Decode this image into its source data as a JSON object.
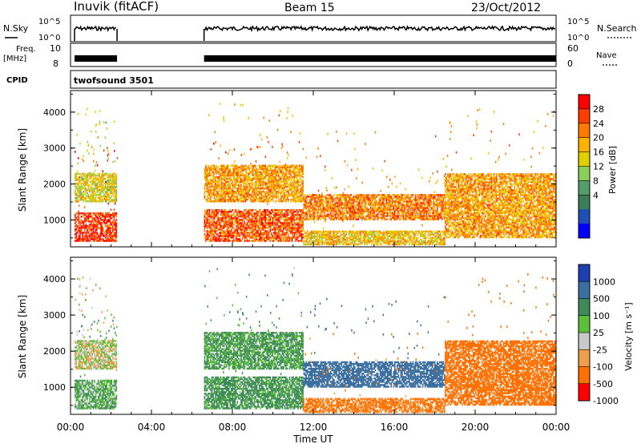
{
  "header": {
    "station": "Inuvik (fitACF)",
    "beam": "Beam 15",
    "date": "23/Oct/2012"
  },
  "noise_panel": {
    "left_label": "N.Sky",
    "left_ticks": [
      "10^5",
      "10^0"
    ],
    "right_ticks": [
      "10^5",
      "10^0"
    ],
    "right_label": "N.Search"
  },
  "freq_panel": {
    "left_label_top": "Freq.",
    "left_label_unit": "[MHz]",
    "left_ticks": [
      "10",
      "8"
    ],
    "right_ticks": [
      "60",
      "0"
    ],
    "right_label": "Nave"
  },
  "cpid": {
    "label": "CPID",
    "value": "twofsound 3501"
  },
  "power_panel": {
    "ylabel": "Slant Range [km]",
    "yticks": [
      "4000",
      "3000",
      "2000",
      "1000"
    ],
    "colorbar_title": "Power [dB]",
    "colorbar_ticks": [
      "28",
      "24",
      "20",
      "16",
      "12",
      "8",
      "4"
    ],
    "colorbar_colors": [
      "#ff0000",
      "#ff3d00",
      "#ff7a00",
      "#ffb300",
      "#e0d000",
      "#8ccf58",
      "#559e6c",
      "#3b7e55",
      "#1f4fb4",
      "#0000ff"
    ]
  },
  "velocity_panel": {
    "ylabel": "Slant Range [km]",
    "yticks": [
      "4000",
      "3000",
      "2000",
      "1000"
    ],
    "colorbar_title": "Velocity [m s⁻¹]",
    "colorbar_ticks": [
      "1000",
      "500",
      "100",
      "25",
      "-25",
      "-100",
      "-500",
      "-1000"
    ],
    "colorbar_colors": [
      "#1e3fb0",
      "#3a6fa0",
      "#3f8a5a",
      "#5cbf3a",
      "#c8c8c8",
      "#f0a04a",
      "#ff7000",
      "#ff0000"
    ]
  },
  "xaxis": {
    "label": "Time UT",
    "ticks": [
      "00:00",
      "04:00",
      "08:00",
      "12:00",
      "16:00",
      "20:00",
      "00:00"
    ]
  },
  "chart_data": {
    "type": "heatmap",
    "x_unit": "hours UT",
    "xlim": [
      0,
      24
    ],
    "ylim": [
      250,
      4600
    ],
    "data_gap_hours": [
      2.3,
      6.6
    ],
    "power_bands": [
      {
        "x_start": 0.2,
        "x_end": 2.3,
        "range_low": 400,
        "range_high": 1200,
        "power": 28
      },
      {
        "x_start": 0.2,
        "x_end": 2.3,
        "range_low": 1500,
        "range_high": 2300,
        "power": 18
      },
      {
        "x_start": 6.6,
        "x_end": 11.5,
        "range_low": 400,
        "range_high": 1300,
        "power": 26
      },
      {
        "x_start": 6.6,
        "x_end": 11.5,
        "range_low": 1500,
        "range_high": 2500,
        "power": 22
      },
      {
        "x_start": 11.5,
        "x_end": 18.5,
        "range_low": 1000,
        "range_high": 1700,
        "power": 24
      },
      {
        "x_start": 11.5,
        "x_end": 18.5,
        "range_low": 300,
        "range_high": 700,
        "power": 20
      },
      {
        "x_start": 18.5,
        "x_end": 24,
        "range_low": 500,
        "range_high": 2300,
        "power": 22
      }
    ],
    "velocity_bands": [
      {
        "x_start": 0.2,
        "x_end": 2.3,
        "range_low": 400,
        "range_high": 1200,
        "velocity": 100
      },
      {
        "x_start": 0.2,
        "x_end": 2.3,
        "range_low": 1500,
        "range_high": 2300,
        "velocity": 0
      },
      {
        "x_start": 6.6,
        "x_end": 11.5,
        "range_low": 400,
        "range_high": 1300,
        "velocity": 150
      },
      {
        "x_start": 6.6,
        "x_end": 11.5,
        "range_low": 1500,
        "range_high": 2500,
        "velocity": 120
      },
      {
        "x_start": 11.5,
        "x_end": 18.5,
        "range_low": 1000,
        "range_high": 1700,
        "velocity": 600
      },
      {
        "x_start": 11.5,
        "x_end": 18.5,
        "range_low": 300,
        "range_high": 700,
        "velocity": -150
      },
      {
        "x_start": 18.5,
        "x_end": 24,
        "range_low": 500,
        "range_high": 2300,
        "velocity": -300
      }
    ]
  }
}
